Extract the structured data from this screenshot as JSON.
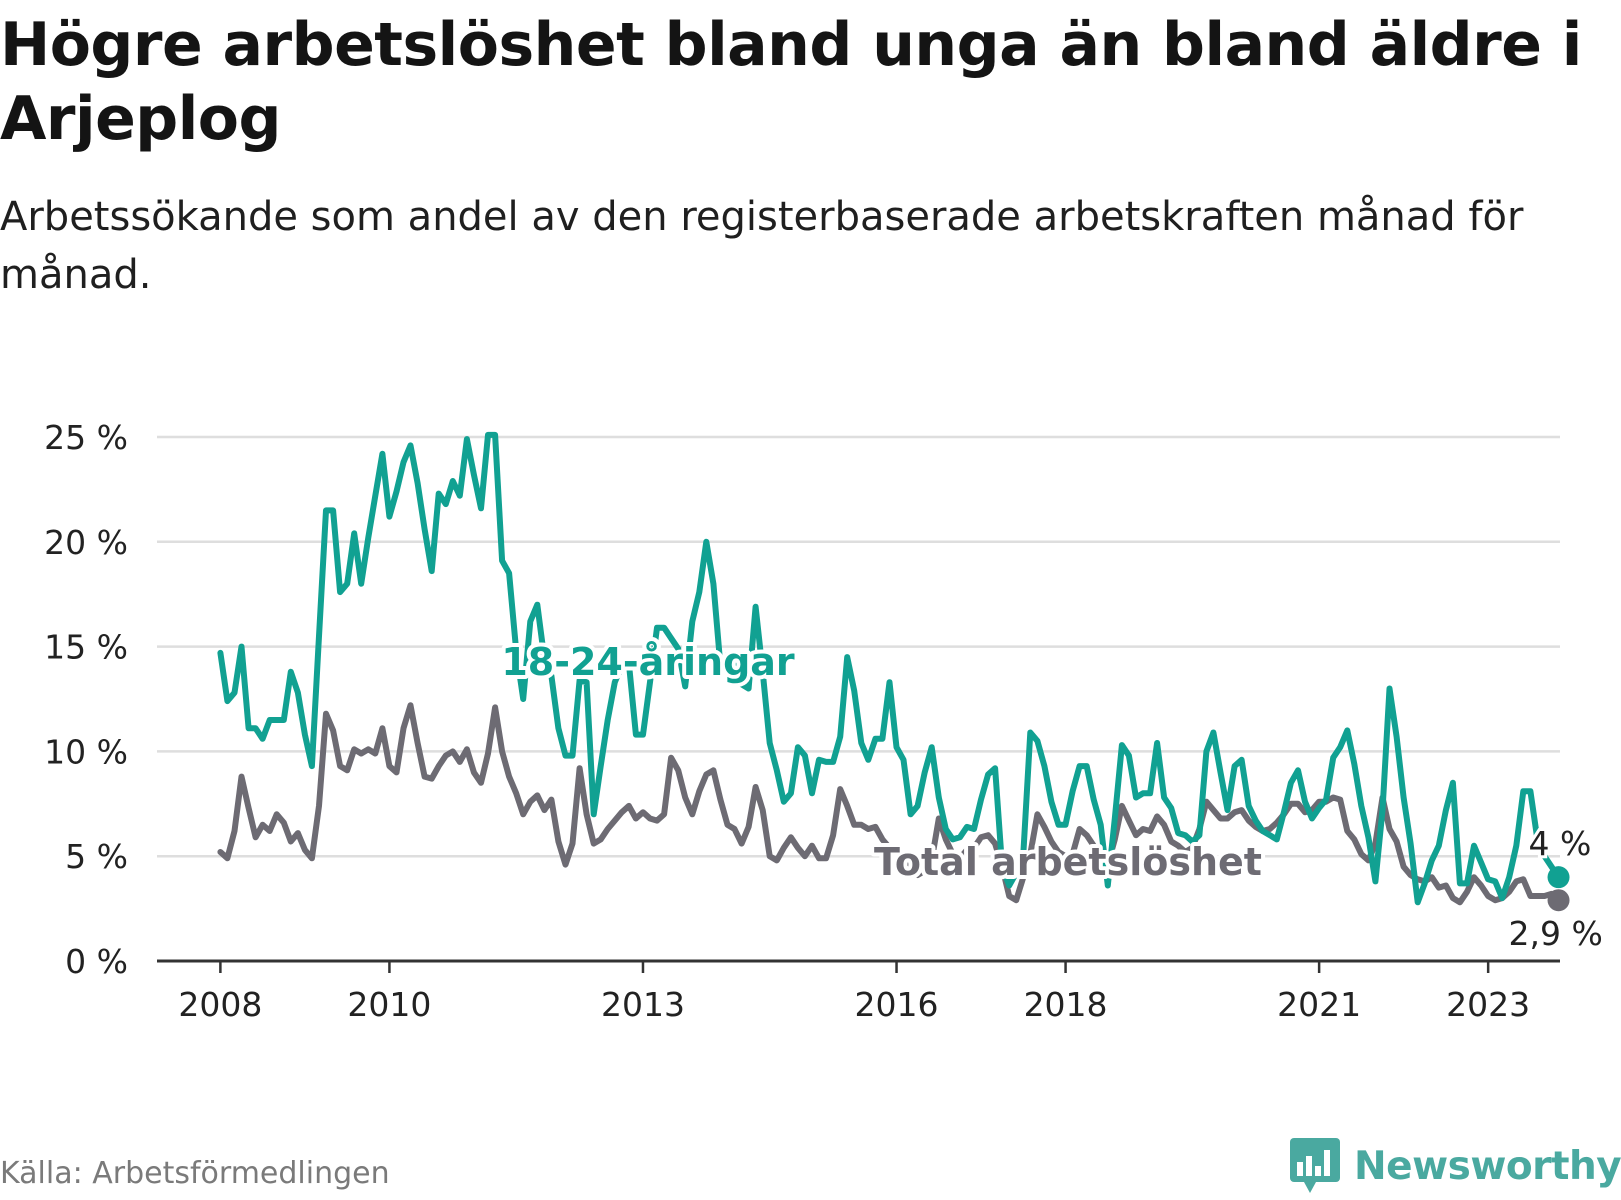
{
  "title": "Högre arbetslöshet bland unga än bland äldre i Arjeplog",
  "subtitle": "Arbetssökande som andel av den registerbaserade arbetskraften månad för månad.",
  "source": "Källa: Arbetsförmedlingen",
  "brand": {
    "name": "Newsworthy",
    "icon": "newsworthy-logo-icon"
  },
  "colors": {
    "youth": "#11a192",
    "total": "#6d6b73",
    "grid": "#dedede",
    "axis": "#333333",
    "text": "#222222"
  },
  "chart_data": {
    "type": "line",
    "title": "Högre arbetslöshet bland unga än bland äldre i Arjeplog",
    "xlabel": "",
    "ylabel": "",
    "x_start": 2008.0,
    "x_step": 0.08333,
    "xlim": [
      2007.25,
      2023.85
    ],
    "ylim": [
      0,
      25
    ],
    "y_ticks": [
      0,
      5,
      10,
      15,
      20,
      25
    ],
    "y_tick_labels": [
      "0 %",
      "5 %",
      "10 %",
      "15 %",
      "20 %",
      "25 %"
    ],
    "x_ticks": [
      2008,
      2010,
      2013,
      2016,
      2018,
      2021,
      2023
    ],
    "x_tick_labels": [
      "2008",
      "2010",
      "2013",
      "2016",
      "2018",
      "2021",
      "2023"
    ],
    "grid": true,
    "series": [
      {
        "name": "18-24-åringar",
        "label_text": "18-24-åringar",
        "end_label": "4 %",
        "values": [
          14.7,
          12.4,
          12.8,
          15,
          11.1,
          11.1,
          10.6,
          11.5,
          11.5,
          11.5,
          13.8,
          12.8,
          10.8,
          9.3,
          15.5,
          21.5,
          21.5,
          17.6,
          18,
          20.4,
          18,
          20.2,
          22.2,
          24.2,
          21.2,
          22.4,
          23.8,
          24.6,
          22.8,
          20.6,
          18.6,
          22.3,
          21.8,
          22.9,
          22.2,
          24.9,
          23.2,
          21.6,
          25.1,
          25.1,
          19.1,
          18.5,
          14.8,
          12.5,
          16.2,
          17,
          14.4,
          13.6,
          11.1,
          9.8,
          9.8,
          13.4,
          13.3,
          7,
          9.3,
          11.5,
          13.3,
          14.1,
          14.2,
          10.8,
          10.8,
          13.3,
          15.9,
          15.9,
          15.4,
          14.9,
          13.1,
          16.2,
          17.6,
          20,
          18,
          14.1,
          14.6,
          14.1,
          13.2,
          13,
          16.9,
          13.8,
          10.4,
          9.1,
          7.6,
          8,
          10.2,
          9.8,
          8,
          9.6,
          9.5,
          9.5,
          10.7,
          14.5,
          12.9,
          10.4,
          9.6,
          10.6,
          10.6,
          13.3,
          10.2,
          9.6,
          7,
          7.4,
          9,
          10.2,
          7.8,
          6.3,
          5.8,
          5.9,
          6.4,
          6.3,
          7.7,
          8.9,
          9.2,
          4.5,
          3.6,
          4.2,
          5.1,
          10.9,
          10.5,
          9.3,
          7.6,
          6.5,
          6.5,
          8.1,
          9.3,
          9.3,
          7.7,
          6.5,
          3.6,
          6.8,
          10.3,
          9.8,
          7.8,
          8,
          8,
          10.4,
          7.8,
          7.3,
          6.1,
          6,
          5.7,
          6,
          10,
          10.9,
          9,
          7.2,
          9.3,
          9.6,
          7.4,
          6.7,
          6.2,
          6,
          5.8,
          7.1,
          8.5,
          9.1,
          7.6,
          6.8,
          7.3,
          7.7,
          9.7,
          10.2,
          11,
          9.4,
          7.4,
          5.9,
          3.8,
          7.2,
          13,
          10.7,
          7.8,
          5.6,
          2.8,
          3.7,
          4.8,
          5.5,
          7.2,
          8.5,
          3.7,
          3.7,
          5.5,
          4.7,
          3.9,
          3.8,
          3,
          4,
          5.5,
          8.1,
          8.1,
          5.8,
          5,
          4.5,
          4
        ]
      },
      {
        "name": "Total arbetslöshet",
        "label_text": "Total arbetslöshet",
        "end_label": "2,9 %",
        "values": [
          5.2,
          4.9,
          6.2,
          8.8,
          7.3,
          5.9,
          6.5,
          6.2,
          7,
          6.6,
          5.7,
          6.1,
          5.3,
          4.9,
          7.4,
          11.8,
          11,
          9.3,
          9.1,
          10.1,
          9.9,
          10.1,
          9.9,
          11.1,
          9.3,
          9,
          11.1,
          12.2,
          10.4,
          8.8,
          8.7,
          9.3,
          9.8,
          10,
          9.5,
          10.1,
          9,
          8.5,
          9.9,
          12.1,
          10,
          8.8,
          8,
          7,
          7.6,
          7.9,
          7.2,
          7.7,
          5.7,
          4.6,
          5.6,
          9.2,
          7,
          5.6,
          5.8,
          6.3,
          6.7,
          7.1,
          7.4,
          6.8,
          7.1,
          6.8,
          6.7,
          7,
          9.7,
          9.1,
          7.8,
          7,
          8.1,
          8.9,
          9.1,
          7.7,
          6.5,
          6.3,
          5.6,
          6.4,
          8.3,
          7.2,
          5,
          4.8,
          5.4,
          5.9,
          5.4,
          5,
          5.5,
          4.9,
          4.9,
          6,
          8.2,
          7.4,
          6.5,
          6.5,
          6.3,
          6.4,
          5.8,
          5.4,
          5.2,
          4.9,
          4.6,
          4.1,
          4.3,
          4.8,
          6.8,
          5.8,
          5.1,
          4.9,
          5.3,
          5.4,
          5.9,
          6,
          5.6,
          4.5,
          3.1,
          2.9,
          4,
          5.1,
          7,
          6.4,
          5.7,
          5.2,
          5,
          5.1,
          6.3,
          6,
          5.5,
          5.2,
          4.6,
          5.8,
          7.4,
          6.7,
          6,
          6.3,
          6.2,
          6.9,
          6.5,
          5.7,
          5.5,
          5.2,
          5.4,
          6.3,
          7.6,
          7.2,
          6.8,
          6.8,
          7.1,
          7.2,
          6.7,
          6.4,
          6.2,
          6.3,
          6.6,
          7,
          7.5,
          7.5,
          7.1,
          7.2,
          7.6,
          7.6,
          7.8,
          7.7,
          6.2,
          5.8,
          5.1,
          4.8,
          5.6,
          7.8,
          6.3,
          5.7,
          4.5,
          4.1,
          3.9,
          3.8,
          4,
          3.5,
          3.6,
          3,
          2.8,
          3.3,
          4,
          3.6,
          3.1,
          2.9,
          3,
          3.3,
          3.8,
          3.9,
          3.1,
          3.1,
          3.1,
          3.2,
          2.9
        ]
      }
    ]
  }
}
